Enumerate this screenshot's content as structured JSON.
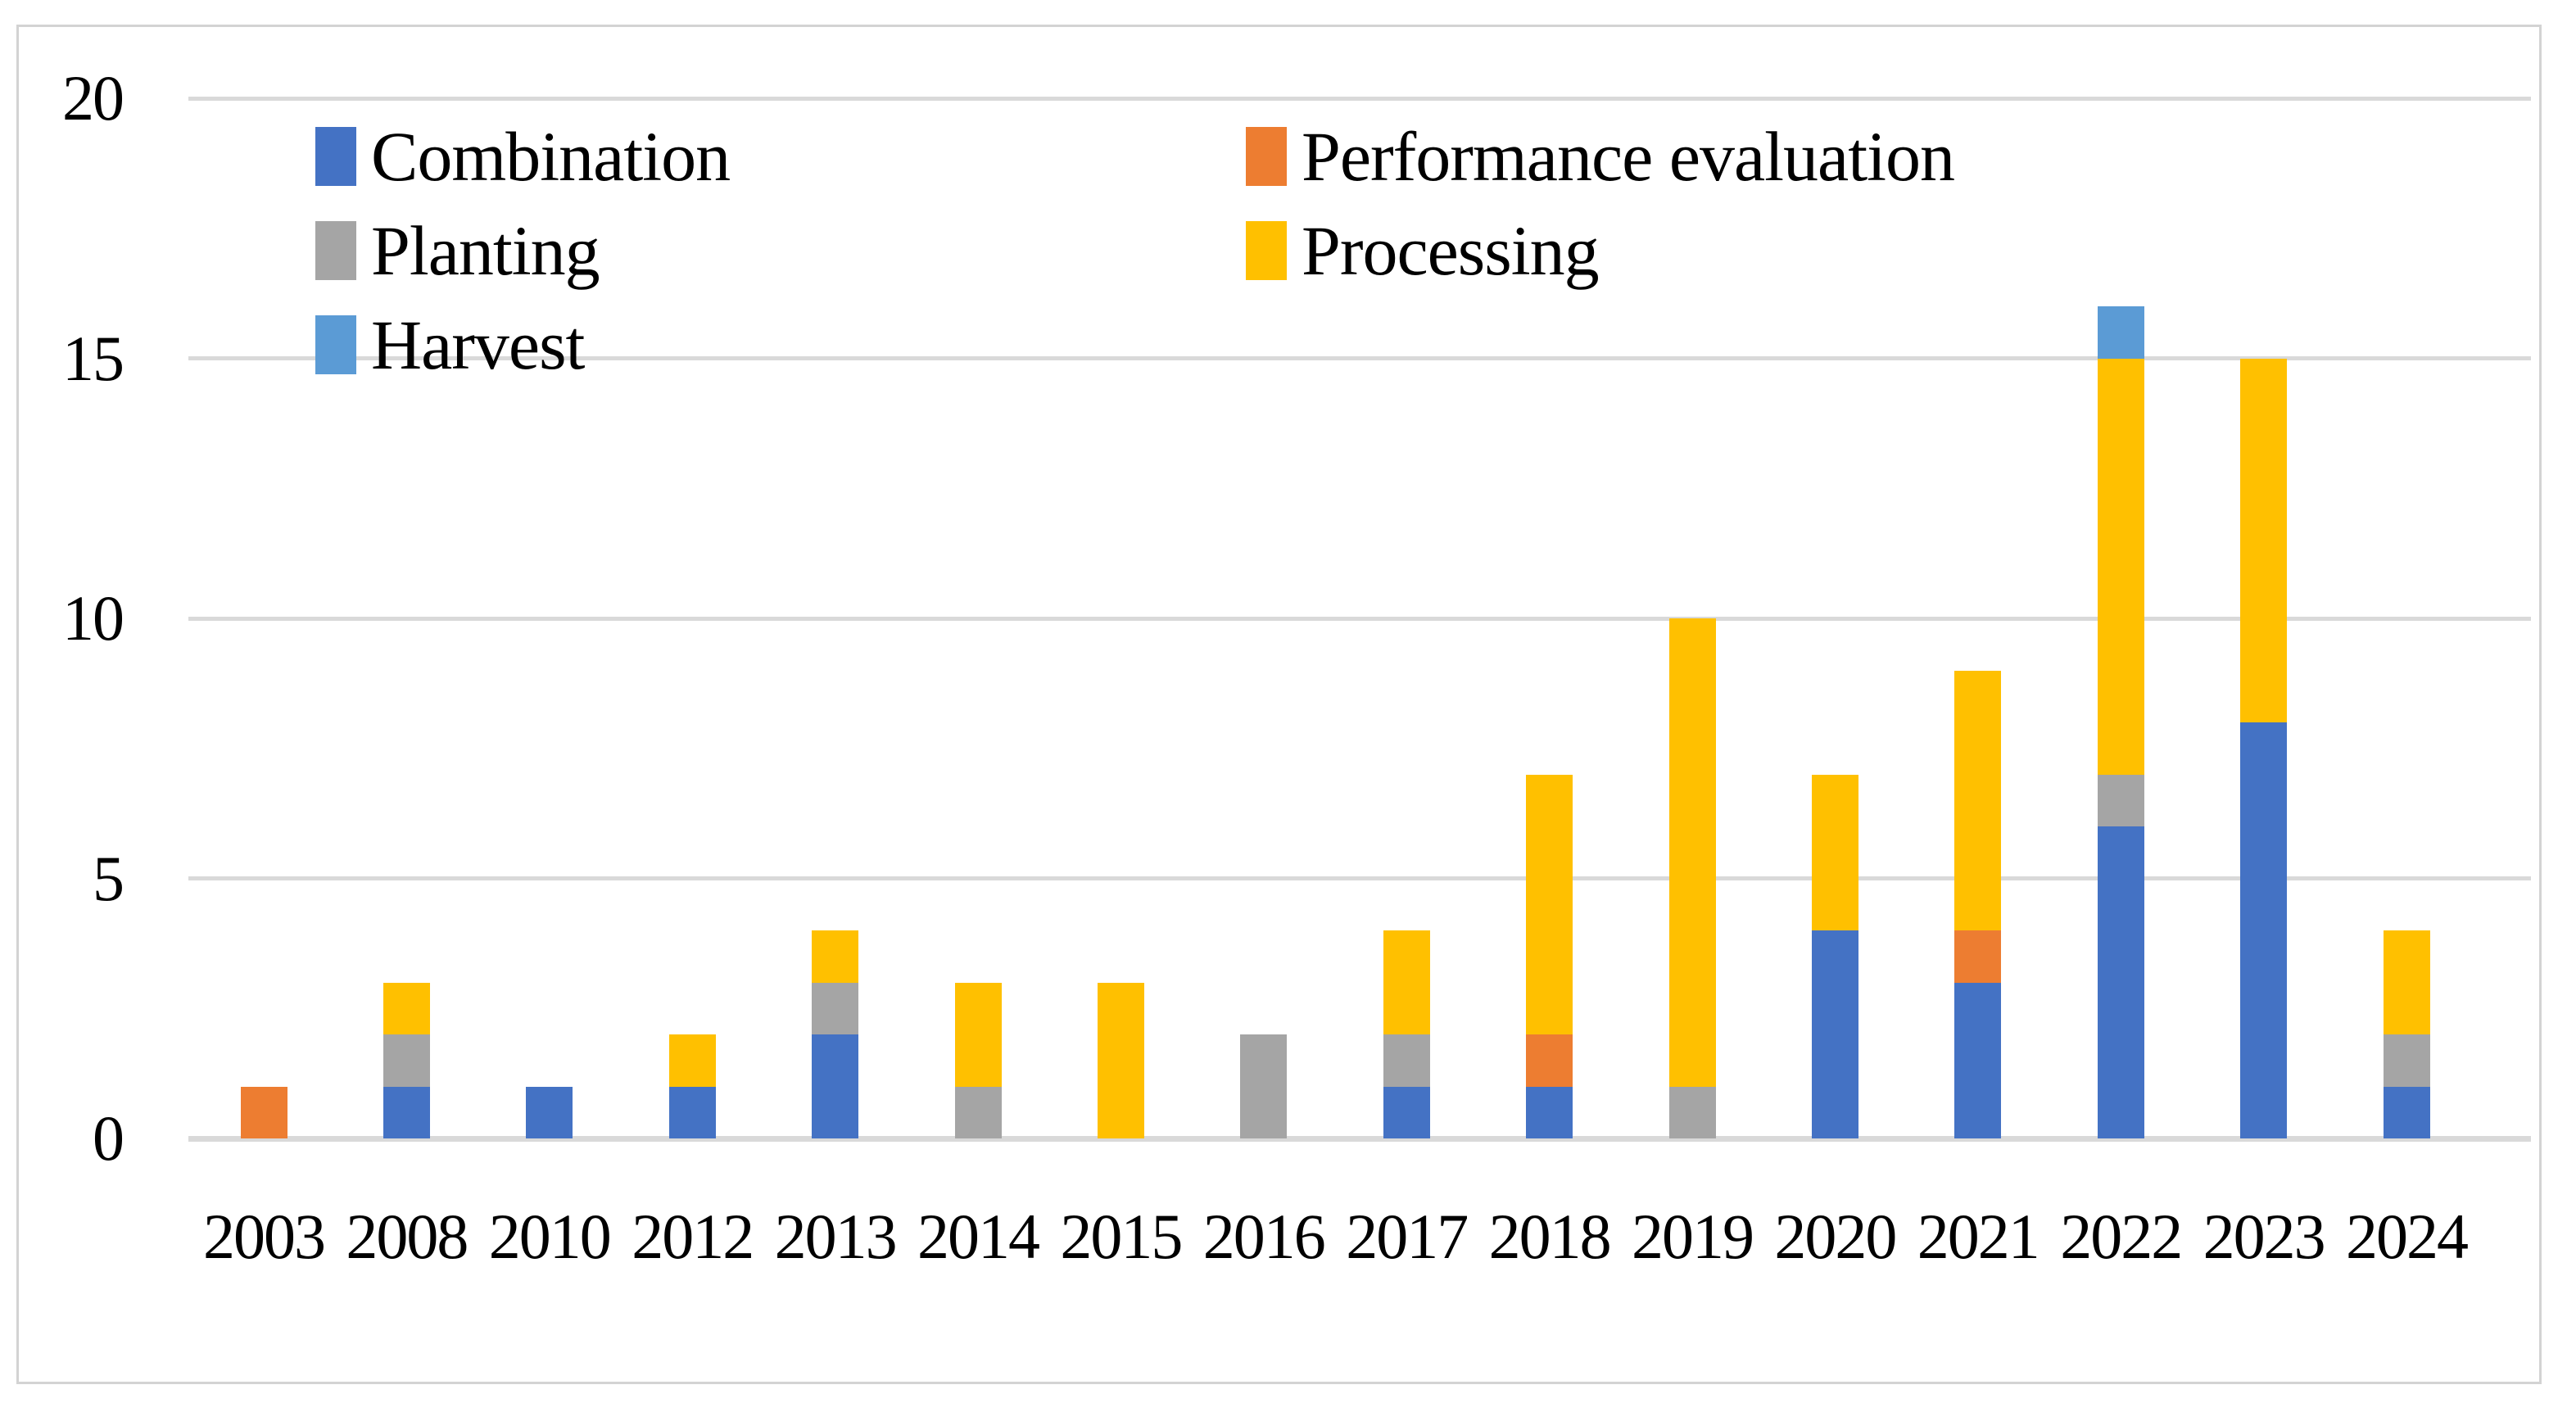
{
  "figure": {
    "background_color": "#ffffff",
    "frame_border_color": "#d3d3d3",
    "gridline_color": "#d9d9d9",
    "text_color": "#000000"
  },
  "chart_data": {
    "type": "bar",
    "stacked": true,
    "title": "",
    "xlabel": "",
    "ylabel": "",
    "categories": [
      "2003",
      "2008",
      "2010",
      "2012",
      "2013",
      "2014",
      "2015",
      "2016",
      "2017",
      "2018",
      "2019",
      "2020",
      "2021",
      "2022",
      "2023",
      "2024"
    ],
    "series": [
      {
        "name": "Combination",
        "color": "#4472C4",
        "values": [
          0,
          1,
          1,
          1,
          2,
          0,
          0,
          0,
          1,
          1,
          0,
          4,
          3,
          6,
          8,
          1
        ]
      },
      {
        "name": "Performance evaluation",
        "color": "#ED7D31",
        "values": [
          1,
          0,
          0,
          0,
          0,
          0,
          0,
          0,
          0,
          1,
          0,
          0,
          1,
          0,
          0,
          0
        ]
      },
      {
        "name": "Planting",
        "color": "#A5A5A5",
        "values": [
          0,
          1,
          0,
          0,
          1,
          1,
          0,
          2,
          1,
          0,
          1,
          0,
          0,
          1,
          0,
          1
        ]
      },
      {
        "name": "Processing",
        "color": "#FFC000",
        "values": [
          0,
          1,
          0,
          1,
          1,
          2,
          3,
          0,
          2,
          5,
          9,
          3,
          5,
          8,
          7,
          2
        ]
      },
      {
        "name": "Harvest",
        "color": "#5B9BD5",
        "values": [
          0,
          0,
          0,
          0,
          0,
          0,
          0,
          0,
          0,
          0,
          0,
          0,
          0,
          1,
          0,
          0
        ]
      }
    ],
    "totals": [
      1,
      3,
      1,
      2,
      4,
      3,
      3,
      2,
      4,
      7,
      10,
      7,
      9,
      16,
      15,
      4
    ],
    "ylim": [
      0,
      20
    ],
    "yticks": [
      0,
      5,
      10,
      15,
      20
    ],
    "grid": true,
    "legend_position": "top-left, two columns, rows: [Combination | Performance evaluation], [Planting | Processing], [Harvest]"
  }
}
